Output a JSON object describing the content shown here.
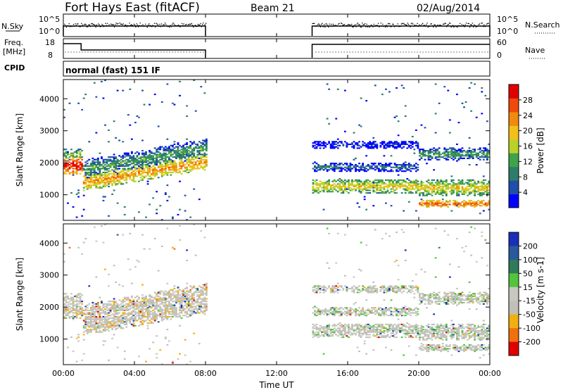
{
  "header": {
    "station": "Fort Hays East (fitACF)",
    "beam": "Beam 21",
    "date": "02/Aug/2014"
  },
  "strip_labels": {
    "nsky": "N.Sky",
    "nsky_ticks": [
      "10^5",
      "10^0"
    ],
    "nsearch": "N.Search",
    "nsearch_ticks": [
      "10^5",
      "10^0"
    ],
    "freq": "Freq.",
    "freq_unit": "[MHz]",
    "freq_ticks": [
      "18",
      "8"
    ],
    "nave": "Nave",
    "nave_ticks": [
      "60",
      "0"
    ],
    "cpid": "CPID",
    "cpid_value": "normal (fast) 151 IF"
  },
  "colors": {
    "power_scale": [
      "#0000ff",
      "#1f4fa8",
      "#2e7d6b",
      "#3fa34a",
      "#b9d22a",
      "#f2c01a",
      "#f08a10",
      "#f04a0a",
      "#e00000"
    ],
    "velocity_scale": [
      "#1a2fb8",
      "#2a5a9c",
      "#2f7a5a",
      "#53c43c",
      "#c8c8c0",
      "#c0c0b8",
      "#f0b010",
      "#f07010",
      "#e00000"
    ]
  },
  "chart_data": [
    {
      "type": "heatmap",
      "name": "power",
      "xlabel": "",
      "ylabel": "Slant Range [km]",
      "xlim": [
        "00:00",
        "24:00"
      ],
      "ylim": [
        200,
        4600
      ],
      "y_ticks": [
        1000,
        2000,
        3000,
        4000
      ],
      "colorbar": {
        "label": "Power [dB]",
        "ticks": [
          4,
          8,
          12,
          16,
          20,
          24,
          28
        ],
        "range": [
          0,
          32
        ]
      },
      "data_gap_ut_hours": [
        8,
        14
      ],
      "echo_bands": [
        {
          "ut_hours": [
            0,
            1
          ],
          "range_km": [
            1600,
            2400
          ],
          "power_db": 28
        },
        {
          "ut_hours": [
            1,
            8
          ],
          "range_km": [
            1100,
            2600
          ],
          "power_db": 20
        },
        {
          "ut_hours": [
            14,
            24
          ],
          "range_km": [
            900,
            1500
          ],
          "power_db": 20
        },
        {
          "ut_hours": [
            14,
            24
          ],
          "range_km": [
            1600,
            2000
          ],
          "power_db": 10
        },
        {
          "ut_hours": [
            20,
            24
          ],
          "range_km": [
            2000,
            2600
          ],
          "power_db": 14
        }
      ]
    },
    {
      "type": "heatmap",
      "name": "velocity",
      "xlabel": "Time UT",
      "ylabel": "Slant Range [km]",
      "x_ticks": [
        "00:00",
        "04:00",
        "08:00",
        "12:00",
        "16:00",
        "20:00",
        "00:00"
      ],
      "ylim": [
        200,
        4600
      ],
      "y_ticks": [
        1000,
        2000,
        3000,
        4000
      ],
      "colorbar": {
        "label": "Velocity [m s-1]",
        "ticks": [
          "200",
          "100",
          "50",
          "15",
          "-15",
          "-50",
          "-100",
          "-200"
        ]
      },
      "data_gap_ut_hours": [
        8,
        14
      ]
    }
  ]
}
